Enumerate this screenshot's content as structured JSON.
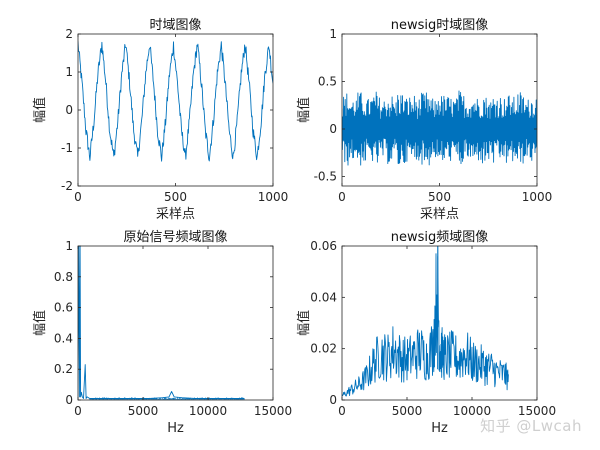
{
  "watermark": "知乎 @Lwcah",
  "series_color": "#0072BD",
  "chart_data": [
    {
      "type": "line",
      "title": "时域图像",
      "xlabel": "采样点",
      "ylabel": "幅值",
      "xlim": [
        0,
        1000
      ],
      "ylim": [
        -2,
        2
      ],
      "xticks": [
        "0",
        "500",
        "1000"
      ],
      "yticks": [
        "-2",
        "-1",
        "0",
        "1",
        "2"
      ],
      "series": [
        {
          "x_range": [
            0,
            1000
          ],
          "values": [
            1.75,
            0.7,
            -0.55,
            -1.25,
            -0.3,
            0.95,
            1.75,
            0.7,
            -0.55,
            -1.25,
            -0.3,
            0.95,
            1.75,
            0.7,
            -0.55,
            -1.25,
            -0.3,
            0.95,
            1.75,
            0.7,
            -0.55,
            -1.25,
            -0.3,
            0.95,
            1.7,
            0.7,
            -0.55,
            -1.25,
            -0.3,
            0.95,
            1.75,
            0.7,
            -0.55,
            -1.25,
            -0.3,
            0.95,
            1.7,
            0.7,
            -0.55,
            -1.25,
            -0.3,
            0.95,
            1.75,
            0.7,
            -0.55,
            -1.25,
            -0.3,
            0.95,
            1.7,
            0.7
          ]
        }
      ]
    },
    {
      "type": "line",
      "title": "newsig时域图像",
      "xlabel": "采样点",
      "ylabel": "幅值",
      "xlim": [
        0,
        1000
      ],
      "ylim": [
        -0.6,
        1
      ],
      "xticks": [
        "0",
        "500",
        "1000"
      ],
      "yticks": [
        "-0.5",
        "0",
        "0.5",
        "1"
      ],
      "series": [
        {
          "x_range": [
            0,
            1000
          ],
          "values": [
            0.3,
            -0.45,
            0.15,
            -0.2,
            0.45,
            -0.35,
            0.1,
            0.25,
            -0.5,
            0.2,
            -0.1,
            0.35,
            -0.3,
            0.05,
            0.55,
            -0.4,
            0.2,
            -0.25,
            0.3,
            -0.15,
            0.4,
            -0.45,
            0.1,
            -0.05,
            0.5,
            -0.3,
            0.25,
            -0.2,
            0.15,
            -0.55,
            0.35,
            -0.1,
            0.3,
            -0.35,
            0.2,
            0.45,
            -0.25,
            0.05,
            -0.4,
            0.3,
            -0.15,
            0.4,
            -0.3,
            0.2,
            -0.5,
            0.35,
            -0.1,
            0.25,
            -0.35,
            0.15
          ]
        }
      ]
    },
    {
      "type": "line",
      "title": "原始信号频域图像",
      "xlabel": "Hz",
      "ylabel": "幅值",
      "xlim": [
        0,
        15000
      ],
      "ylim": [
        0,
        1
      ],
      "xticks": [
        "0",
        "5000",
        "10000",
        "15000"
      ],
      "yticks": [
        "0",
        "0.2",
        "0.4",
        "0.6",
        "0.8",
        "1"
      ],
      "series": [
        {
          "x": [
            0,
            60,
            120,
            160,
            200,
            260,
            330,
            420,
            550,
            620,
            700,
            900,
            1500,
            2500,
            3500,
            4500,
            5500,
            6500,
            7000,
            7200,
            7400,
            8000,
            9000,
            10000,
            11000,
            12000,
            12800
          ],
          "values": [
            0.01,
            1.0,
            0.02,
            1.0,
            0.02,
            0.05,
            0.02,
            0.01,
            0.23,
            0.01,
            0.02,
            0.01,
            0.01,
            0.01,
            0.01,
            0.01,
            0.01,
            0.015,
            0.02,
            0.055,
            0.02,
            0.015,
            0.01,
            0.01,
            0.01,
            0.01,
            0.01
          ]
        }
      ]
    },
    {
      "type": "line",
      "title": "newsig频域图像",
      "xlabel": "Hz",
      "ylabel": "幅值",
      "xlim": [
        0,
        15000
      ],
      "ylim": [
        0,
        0.06
      ],
      "xticks": [
        "0",
        "5000",
        "10000",
        "15000"
      ],
      "yticks": [
        "0",
        "0.02",
        "0.04",
        "0.06"
      ],
      "series": [
        {
          "x": [
            0,
            500,
            1000,
            1500,
            2000,
            2500,
            3000,
            3500,
            4000,
            4500,
            5000,
            5500,
            6000,
            6500,
            7000,
            7350,
            7500,
            7700,
            8000,
            8500,
            9000,
            9500,
            10000,
            10500,
            11000,
            11500,
            12000,
            12500,
            12800
          ],
          "values": [
            0.002,
            0.004,
            0.006,
            0.008,
            0.012,
            0.018,
            0.022,
            0.02,
            0.024,
            0.02,
            0.019,
            0.021,
            0.023,
            0.02,
            0.025,
            0.056,
            0.024,
            0.022,
            0.02,
            0.021,
            0.019,
            0.022,
            0.018,
            0.017,
            0.016,
            0.015,
            0.013,
            0.012,
            0.01
          ]
        }
      ]
    }
  ]
}
